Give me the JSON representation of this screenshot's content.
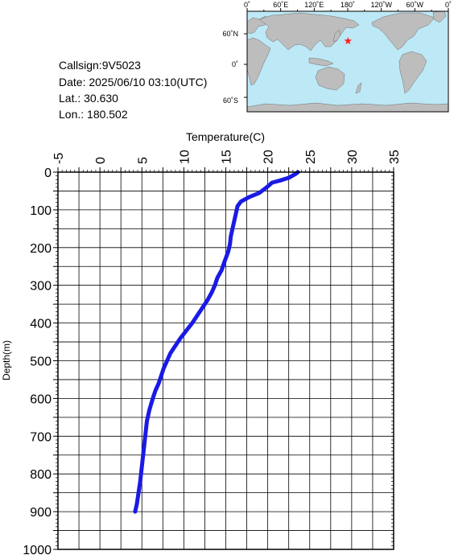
{
  "info": {
    "callsign": "Callsign:9V5023",
    "date": "Date:  2025/06/10 03:10(UTC)",
    "lat": "Lat.:  30.630",
    "lon": "Lon.:  180.502"
  },
  "map": {
    "lon_labels": [
      "0˚",
      "60˚E",
      "120˚E",
      "180˚",
      "120˚W",
      "60˚W",
      "0˚"
    ],
    "lat_labels": [
      "60˚N",
      "0˚",
      "60˚S"
    ],
    "ocean_color": "#bde8f6",
    "land_color": "#bdbdbd",
    "marker": {
      "lon": 180.502,
      "lat": 30.63,
      "color": "#ff2020",
      "symbol": "star"
    }
  },
  "chart_data": {
    "type": "line",
    "xlabel": "Temperature(C)",
    "ylabel": "Depth(m)",
    "xlim": [
      -5,
      35
    ],
    "ylim": [
      1000,
      0
    ],
    "x_ticks": [
      "-5",
      "0",
      "5",
      "10",
      "15",
      "20",
      "25",
      "30",
      "35"
    ],
    "y_ticks": [
      "0",
      "100",
      "200",
      "300",
      "400",
      "500",
      "600",
      "700",
      "800",
      "900",
      "1000"
    ],
    "grid": true,
    "line_color": "#1a1ae6",
    "series": [
      {
        "x": [
          23.6,
          23.3,
          22.5,
          21.5,
          20.5,
          20.0,
          19.0,
          17.8,
          16.8,
          16.4,
          16.2,
          16.0,
          15.8,
          15.6,
          15.5,
          15.3,
          14.8,
          14.5,
          14.0,
          13.7,
          13.3,
          12.8,
          12.2,
          11.6,
          11.0,
          10.3,
          9.6,
          9.0,
          8.4,
          8.0,
          7.6,
          7.3,
          7.0,
          6.6,
          6.3,
          5.9,
          5.6,
          5.4,
          5.2,
          5.0,
          4.8,
          4.6,
          4.4,
          4.2
        ],
        "y": [
          0,
          5,
          15,
          22,
          28,
          38,
          55,
          66,
          78,
          90,
          110,
          130,
          150,
          170,
          190,
          210,
          240,
          260,
          280,
          300,
          320,
          340,
          360,
          380,
          400,
          420,
          440,
          460,
          480,
          500,
          520,
          540,
          560,
          580,
          600,
          630,
          660,
          700,
          740,
          780,
          820,
          850,
          880,
          900
        ]
      }
    ]
  }
}
